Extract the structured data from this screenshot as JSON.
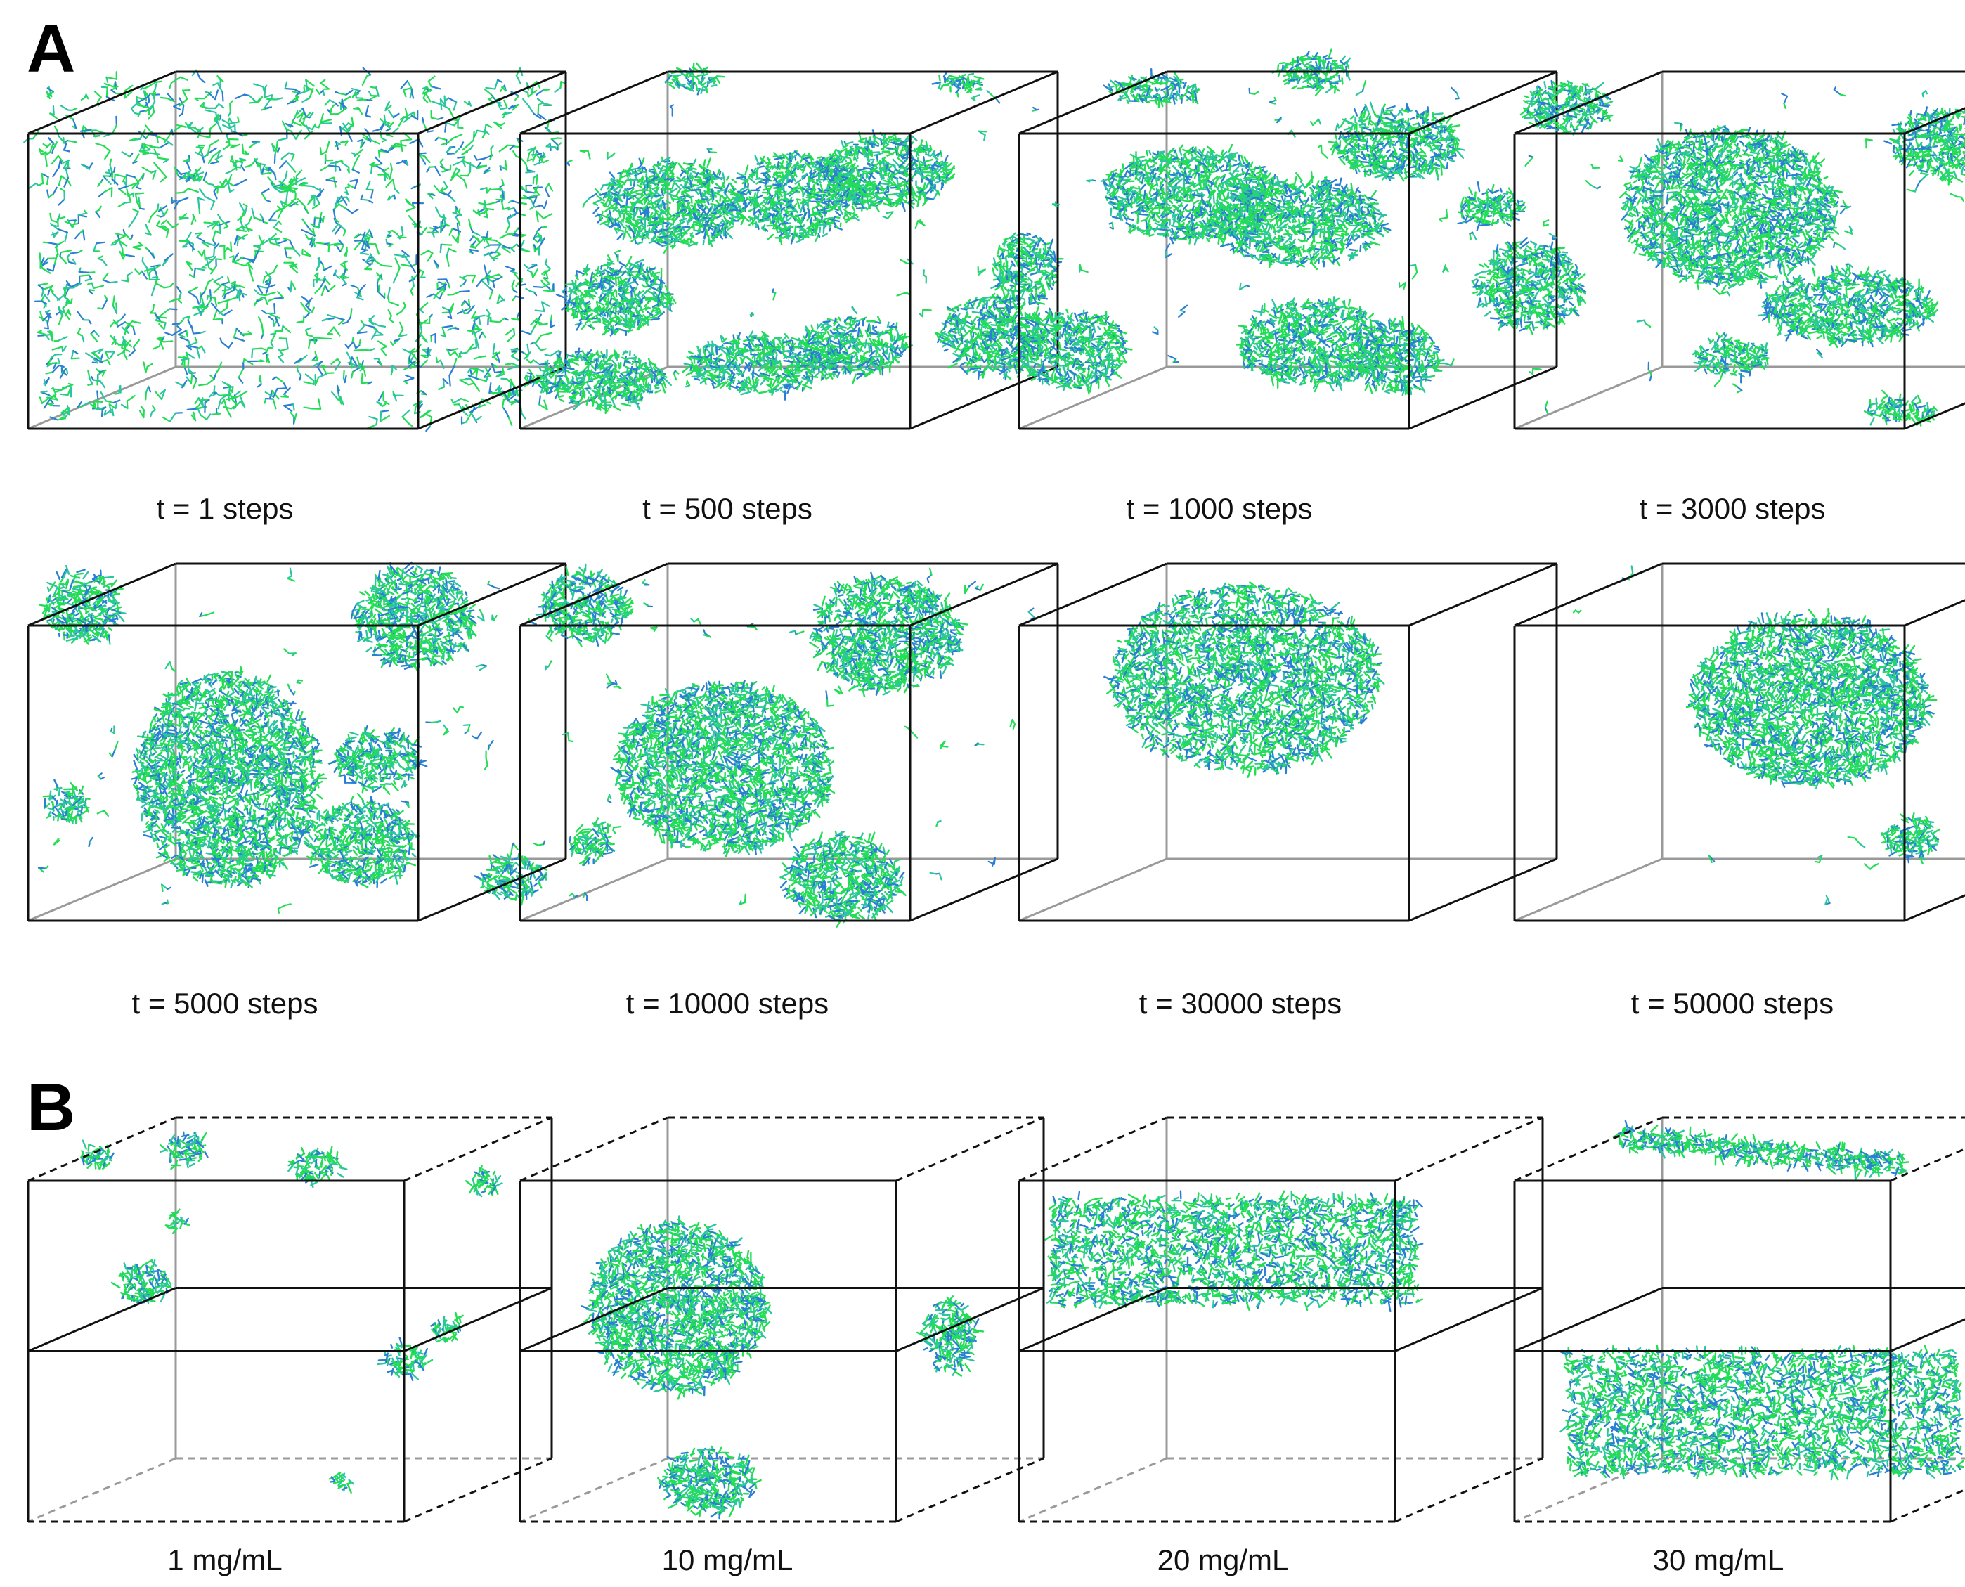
{
  "panels": [
    {
      "letter": "A",
      "snapshots": [
        {
          "label": "t = 1 steps"
        },
        {
          "label": "t = 500 steps"
        },
        {
          "label": "t = 1000 steps"
        },
        {
          "label": "t = 3000 steps"
        },
        {
          "label": "t = 5000 steps"
        },
        {
          "label": "t = 10000 steps"
        },
        {
          "label": "t = 30000 steps"
        },
        {
          "label": "t = 50000 steps"
        }
      ]
    },
    {
      "letter": "B",
      "snapshots": [
        {
          "label": "1 mg/mL"
        },
        {
          "label": "10 mg/mL"
        },
        {
          "label": "20 mg/mL"
        },
        {
          "label": "30 mg/mL"
        }
      ]
    }
  ],
  "colors": {
    "particle_green": "#22dd55",
    "particle_blue": "#2a7fd4",
    "particle_teal": "#2bc6a0",
    "box_edge": "#111111",
    "hidden_edge": "#9a9a9a"
  }
}
